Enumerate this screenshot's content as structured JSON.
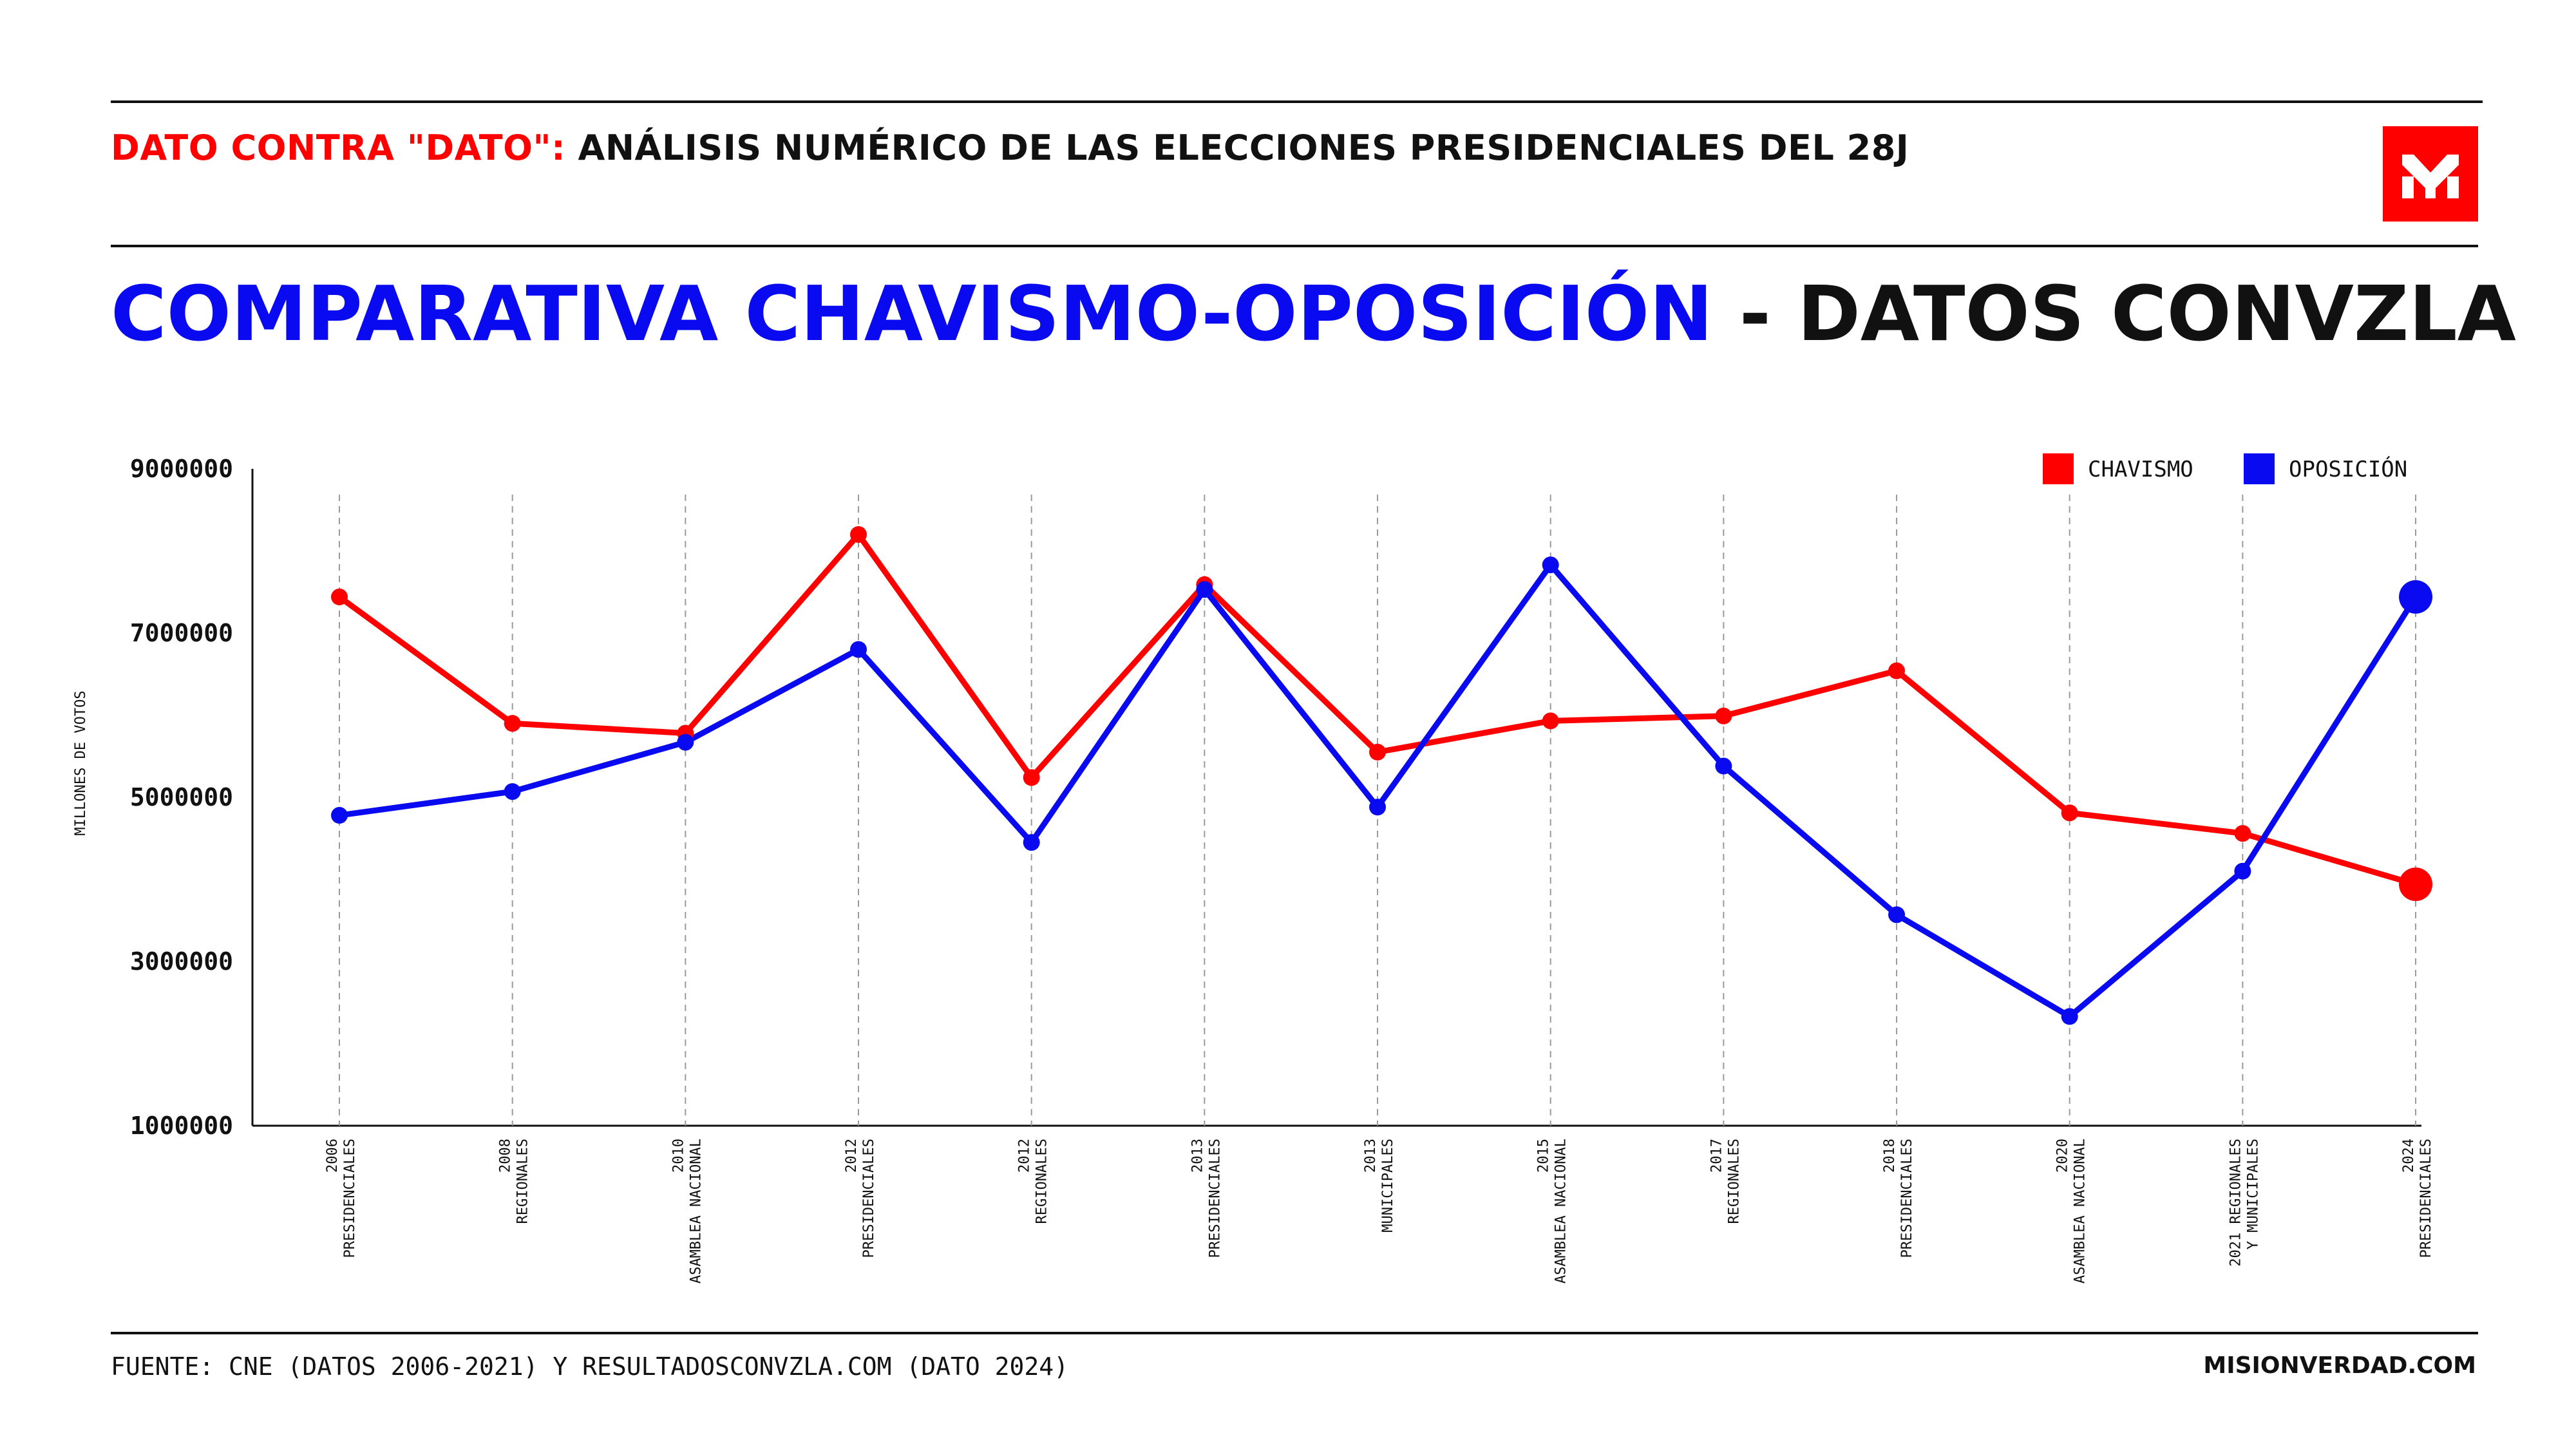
{
  "header": {
    "kicker_red": "DATO CONTRA \"DATO\":",
    "kicker_black": "ANÁLISIS NUMÉRICO DE LAS ELECCIONES PRESIDENCIALES DEL 28J",
    "title_blue": "COMPARATIVA CHAVISMO-OPOSICIÓN",
    "title_black": "- DATOS CONVZLA",
    "logo_icon": "misionverdad-logo-icon"
  },
  "footer": {
    "source": "FUENTE: CNE (DATOS 2006-2021) Y RESULTADOSCONVZLA.COM (DATO 2024)",
    "site": "MISIONVERDAD.COM"
  },
  "colors": {
    "chavismo": "#ff0000",
    "oposicion": "#0a0af0",
    "title_blue": "#0a0af0",
    "accent_red": "#ff0000"
  },
  "chart_data": {
    "type": "line",
    "title": "COMPARATIVA CHAVISMO-OPOSICIÓN - DATOS CONVZLA",
    "xlabel": "",
    "ylabel": "MILLONES DE VOTOS",
    "ylim": [
      1000000,
      9000000
    ],
    "yticks": [
      "9000000",
      "7000000",
      "5000000",
      "3000000",
      "1000000"
    ],
    "ytick_values": [
      9000000,
      7000000,
      5000000,
      3000000,
      1000000
    ],
    "grid": "vertical dashed lines at each category",
    "legend_position": "top-right",
    "categories": [
      [
        "2006",
        "PRESIDENCIALES"
      ],
      [
        "2008",
        "REGIONALES"
      ],
      [
        "2010",
        "ASAMBLEA NACIONAL"
      ],
      [
        "2012",
        "PRESIDENCIALES"
      ],
      [
        "2012",
        "REGIONALES"
      ],
      [
        "2013",
        "PRESIDENCIALES"
      ],
      [
        "2013",
        "MUNICIPALES"
      ],
      [
        "2015",
        "ASAMBLEA NACIONAL"
      ],
      [
        "2017",
        "REGIONALES"
      ],
      [
        "2018",
        "PRESIDENCIALES"
      ],
      [
        "2020",
        "ASAMBLEA NACIONAL"
      ],
      [
        "2021 REGIONALES",
        "Y MUNICIPALES"
      ],
      [
        "2024",
        "PRESIDENCIALES"
      ]
    ],
    "x_offsets": [
      0,
      1,
      2,
      3,
      4,
      5,
      6,
      7,
      8,
      9,
      10,
      11,
      12
    ],
    "series": [
      {
        "name": "CHAVISMO",
        "color": "#ff0000",
        "values": [
          7440000,
          5900000,
          5780000,
          8200000,
          5240000,
          7590000,
          5550000,
          5930000,
          5990000,
          6540000,
          4810000,
          4560000,
          3940000
        ]
      },
      {
        "name": "OPOSICIÓN",
        "color": "#0a0af0",
        "values": [
          4780000,
          5070000,
          5670000,
          6800000,
          4450000,
          7530000,
          4880000,
          7830000,
          5380000,
          3570000,
          2330000,
          4100000,
          7440000
        ]
      }
    ]
  }
}
